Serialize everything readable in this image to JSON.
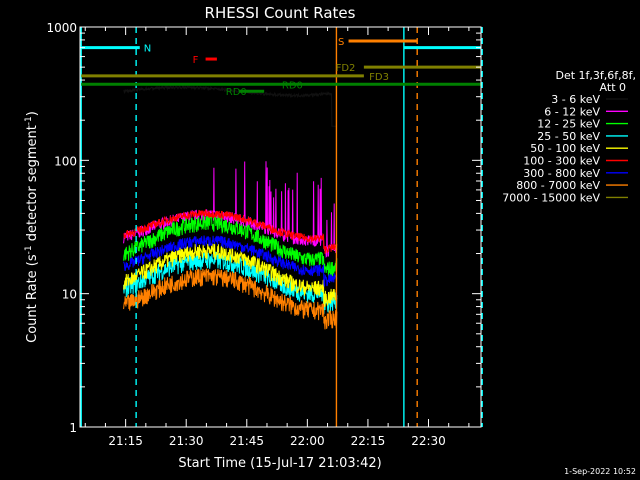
{
  "chart_data": {
    "type": "line",
    "title": "RHESSI Count Rates",
    "xlabel": "Start Time (15-Jul-17 21:03:42)",
    "ylabel_main": "Count Rate (s",
    "ylabel_sup": "-1",
    "ylabel_mid": " detector segment",
    "ylabel_sup2": "-1",
    "ylabel_end": ")",
    "yscale": "log",
    "ylim": [
      1,
      1000
    ],
    "xlim_min": [
      63.7,
      163
    ],
    "y_ticks": [
      {
        "v": 1,
        "label": "1"
      },
      {
        "v": 10,
        "label": "10"
      },
      {
        "v": 100,
        "label": "100"
      },
      {
        "v": 1000,
        "label": "1000"
      }
    ],
    "x_ticks": [
      {
        "t": 75,
        "label": "21:15"
      },
      {
        "t": 90,
        "label": "21:30"
      },
      {
        "t": 105,
        "label": "21:45"
      },
      {
        "t": 120,
        "label": "22:00"
      },
      {
        "t": 135,
        "label": "22:15"
      },
      {
        "t": 150,
        "label": "22:30"
      }
    ],
    "legend_header1": "Det 1f,3f,6f,8f,",
    "legend_header2": "Att 0",
    "series": [
      {
        "name": "3 - 6 keV",
        "color": "#000000",
        "kind": "flat",
        "base": 330
      },
      {
        "name": "6 - 12 keV",
        "color": "#ff00ff",
        "kind": "bg",
        "base": 32,
        "amp": 7,
        "noise": 0.1
      },
      {
        "name": "12 - 25 keV",
        "color": "#00ff00",
        "kind": "bg",
        "base": 26,
        "amp": 8,
        "noise": 0.14
      },
      {
        "name": "25 - 50 keV",
        "color": "#00ffff",
        "kind": "bg",
        "base": 14,
        "amp": 4,
        "noise": 0.16
      },
      {
        "name": "50 - 100 keV",
        "color": "#ffff00",
        "kind": "bg",
        "base": 16,
        "amp": 5,
        "noise": 0.14
      },
      {
        "name": "100 - 300 keV",
        "color": "#ff0000",
        "kind": "bg",
        "base": 33,
        "amp": 7,
        "noise": 0.07
      },
      {
        "name": "300 - 800 keV",
        "color": "#0000ff",
        "kind": "bg",
        "base": 20,
        "amp": 5,
        "noise": 0.1
      },
      {
        "name": "800 - 7000 keV",
        "color": "#ff8000",
        "kind": "bg",
        "base": 10.5,
        "amp": 3,
        "noise": 0.16
      },
      {
        "name": "7000 - 15000 keV",
        "color": "#808000",
        "kind": "none"
      }
    ],
    "segments": [
      {
        "label": "N",
        "color": "#00ffff",
        "t0": 64,
        "t1": 78.5,
        "yv": 700,
        "label_t": 79.5
      },
      {
        "label": "N",
        "color": "#00ffff",
        "t0": 144,
        "t1": 163,
        "yv": 700,
        "label_t": null
      },
      {
        "label": "F",
        "color": "#ff0000",
        "t0": 94.8,
        "t1": 97.6,
        "yv": 575,
        "label_t": 91.6
      },
      {
        "label": "S",
        "color": "#ff8000",
        "t0": 130.2,
        "t1": 147.2,
        "yv": 785,
        "label_t": 127.6
      },
      {
        "label": "FD2",
        "color": "#808000",
        "t0": 134,
        "t1": 163,
        "yv": 500,
        "label_t": 127.0
      },
      {
        "label": "FD3",
        "color": "#808000",
        "t0": 64,
        "t1": 134,
        "yv": 430,
        "label_t": 135.3
      },
      {
        "label": "RD0",
        "color": "#008000",
        "t0": 64,
        "t1": 163,
        "yv": 372,
        "label_t": 113.7
      },
      {
        "label": "RD0",
        "color": "#008000",
        "t0": 103.2,
        "t1": 109.3,
        "yv": 330,
        "label_t": 99.8
      }
    ],
    "vlines": [
      {
        "t": 64,
        "color": "#00ffff",
        "dash": false
      },
      {
        "t": 77.6,
        "color": "#00ffff",
        "dash": true
      },
      {
        "t": 143.9,
        "color": "#00ffff",
        "dash": false
      },
      {
        "t": 163.3,
        "color": "#00ffff",
        "dash": true
      },
      {
        "t": 127.2,
        "color": "#ff8000",
        "dash": false
      },
      {
        "t": 147.2,
        "color": "#ff8000",
        "dash": true
      }
    ],
    "data_start_min": 74.5,
    "data_end_min": 127.3
  },
  "footer_date": "1-Sep-2022 10:52"
}
